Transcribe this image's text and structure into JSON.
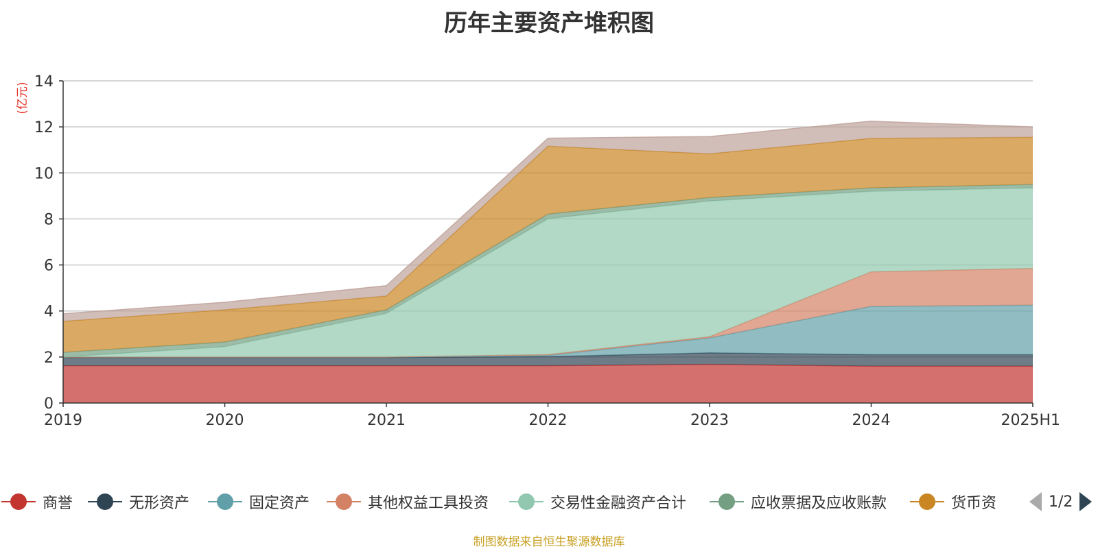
{
  "chart_data": {
    "type": "area",
    "stacked": true,
    "title": "历年主要资产堆积图",
    "ylabel": "(亿元)",
    "xlabel": "",
    "categories": [
      "2019",
      "2020",
      "2021",
      "2022",
      "2023",
      "2024",
      "2025H1"
    ],
    "ylim": [
      0,
      14
    ],
    "yticks": [
      0,
      2,
      4,
      6,
      8,
      10,
      12,
      14
    ],
    "grid": true,
    "legend_position": "bottom",
    "series": [
      {
        "name": "商誉",
        "color": "#c23531",
        "values": [
          1.62,
          1.62,
          1.62,
          1.62,
          1.68,
          1.6,
          1.6
        ]
      },
      {
        "name": "无形资产",
        "color": "#2f4554",
        "values": [
          0.36,
          0.36,
          0.36,
          0.4,
          0.5,
          0.5,
          0.5
        ]
      },
      {
        "name": "固定资产",
        "color": "#61a0a8",
        "values": [
          0.02,
          0.02,
          0.02,
          0.05,
          0.65,
          2.1,
          2.15
        ]
      },
      {
        "name": "其他权益工具投资",
        "color": "#d48265",
        "values": [
          0,
          0,
          0,
          0.04,
          0.05,
          1.5,
          1.6
        ]
      },
      {
        "name": "交易性金融资产合计",
        "color": "#91c7ae",
        "values": [
          0,
          0.45,
          1.9,
          5.9,
          5.9,
          3.5,
          3.5
        ]
      },
      {
        "name": "应收票据及应收账款",
        "color": "#749f83",
        "values": [
          0.2,
          0.2,
          0.15,
          0.2,
          0.15,
          0.15,
          0.15
        ]
      },
      {
        "name": "货币资",
        "color": "#ca8622",
        "values": [
          1.35,
          1.4,
          0.6,
          2.95,
          1.9,
          2.15,
          2.05
        ]
      },
      {
        "name": "",
        "color": "#bda29a",
        "values": [
          0.33,
          0.33,
          0.45,
          0.35,
          0.75,
          0.75,
          0.45
        ]
      }
    ]
  },
  "source_note": "制图数据来自恒生聚源数据库",
  "legend_page": "1/2"
}
